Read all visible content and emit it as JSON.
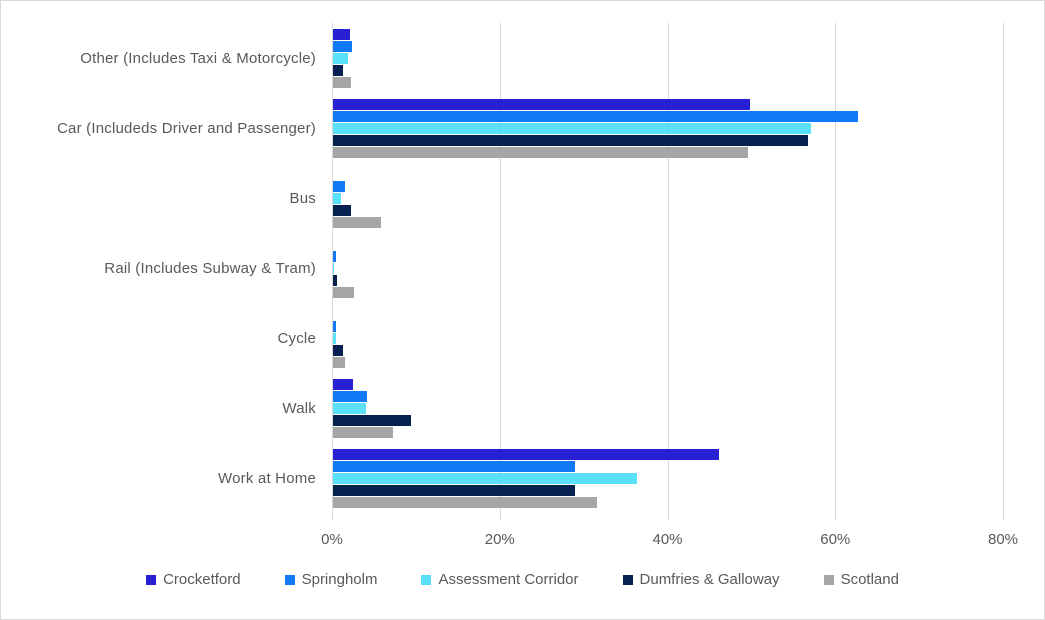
{
  "chart_data": {
    "type": "bar",
    "orientation": "horizontal",
    "title": "",
    "categories": [
      "Other (Includes Taxi & Motorcycle)",
      "Car (Includeds Driver and Passenger)",
      "Bus",
      "Rail (Includes Subway & Tram)",
      "Cycle",
      "Walk",
      "Work at Home"
    ],
    "series": [
      {
        "name": "Crocketford",
        "color": "#2721D3",
        "values": [
          2.0,
          49.7,
          0,
          0,
          0,
          2.4,
          46.0
        ]
      },
      {
        "name": "Springholm",
        "color": "#1279F5",
        "values": [
          2.3,
          62.6,
          1.4,
          0.4,
          0.4,
          4.0,
          28.8
        ]
      },
      {
        "name": "Assessment Corridor",
        "color": "#5BE0FA",
        "values": [
          1.8,
          57.0,
          0.9,
          0.1,
          0.4,
          3.9,
          36.2
        ]
      },
      {
        "name": "Dumfries & Galloway",
        "color": "#062150",
        "values": [
          1.2,
          56.6,
          2.1,
          0.5,
          1.2,
          9.3,
          28.8
        ]
      },
      {
        "name": "Scotland",
        "color": "#A6A6A6",
        "values": [
          2.1,
          49.5,
          5.7,
          2.5,
          1.4,
          7.2,
          31.5
        ]
      }
    ],
    "x_axis": {
      "ticks": [
        "0%",
        "20%",
        "40%",
        "60%",
        "80%"
      ],
      "tick_values": [
        0,
        20,
        40,
        60,
        80
      ],
      "min": 0,
      "max": 80
    },
    "legend_position": "bottom",
    "grid": true,
    "colors": {
      "gridline": "#D9D9D9",
      "text": "#595959",
      "background": "#FFFFFF",
      "border": "#D9D9D9"
    }
  }
}
